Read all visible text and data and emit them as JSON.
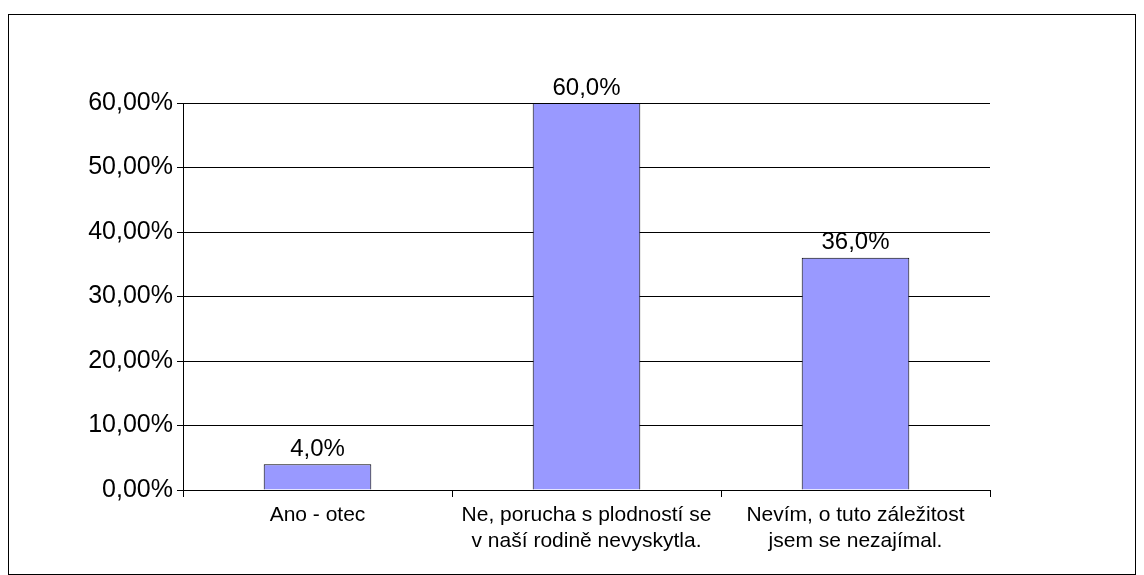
{
  "chart_data": {
    "type": "bar",
    "categories": [
      "Ano - otec",
      "Ne, porucha s plodností se v naší rodině nevyskytla.",
      "Nevím, o tuto záležitost jsem se nezajímal."
    ],
    "values": [
      4,
      60,
      36
    ],
    "color": "#9999ff",
    "value_labels": [
      "4,0%",
      "60,0%",
      "36,0%"
    ],
    "ylim": [
      0,
      60
    ],
    "yticks": [
      {
        "value": 0,
        "label": "0,00%"
      },
      {
        "value": 10,
        "label": "10,00%"
      },
      {
        "value": 20,
        "label": "20,00%"
      },
      {
        "value": 30,
        "label": "30,00%"
      },
      {
        "value": 40,
        "label": "40,00%"
      },
      {
        "value": 50,
        "label": "50,00%"
      },
      {
        "value": 60,
        "label": "60,00%"
      }
    ],
    "grid": "y"
  }
}
